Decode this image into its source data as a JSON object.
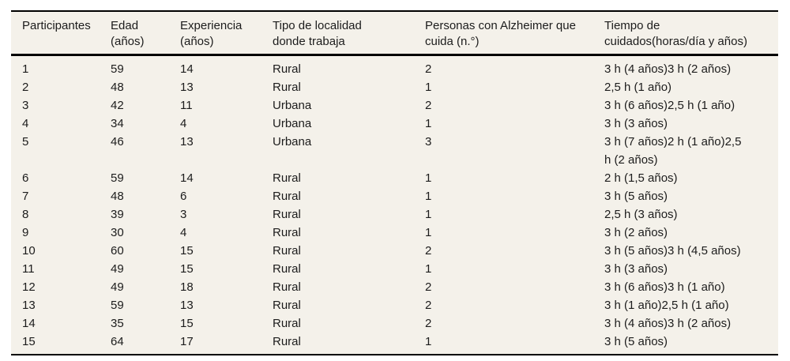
{
  "colors": {
    "table_bg": "#f4f1ea",
    "border": "#000000",
    "text": "#1c1c1c"
  },
  "table": {
    "columns": [
      "Participantes",
      "Edad\n(años)",
      "Experiencia\n(años)",
      "Tipo de localidad\ndonde trabaja",
      "Personas con Alzheimer que\ncuida (n.°)",
      "Tiempo de\ncuidados(horas/día y años)"
    ],
    "rows": [
      [
        "1",
        "59",
        "14",
        "Rural",
        "2",
        "3 h (4 años)3 h (2 años)"
      ],
      [
        "2",
        "48",
        "13",
        "Rural",
        "1",
        "2,5 h (1 año)"
      ],
      [
        "3",
        "42",
        "11",
        "Urbana",
        "2",
        "3 h (6 años)2,5 h (1 año)"
      ],
      [
        "4",
        "34",
        "4",
        "Urbana",
        "1",
        "3 h (3 años)"
      ],
      [
        "5",
        "46",
        "13",
        "Urbana",
        "3",
        "3 h (7 años)2 h (1 año)2,5 h (2 años)"
      ],
      [
        "6",
        "59",
        "14",
        "Rural",
        "1",
        "2 h (1,5 años)"
      ],
      [
        "7",
        "48",
        "6",
        "Rural",
        "1",
        "3 h (5 años)"
      ],
      [
        "8",
        "39",
        "3",
        "Rural",
        "1",
        "2,5 h (3 años)"
      ],
      [
        "9",
        "30",
        "4",
        "Rural",
        "1",
        "3 h (2 años)"
      ],
      [
        "10",
        "60",
        "15",
        "Rural",
        "2",
        "3 h (5 años)3 h (4,5 años)"
      ],
      [
        "11",
        "49",
        "15",
        "Rural",
        "1",
        "3 h (3 años)"
      ],
      [
        "12",
        "49",
        "18",
        "Rural",
        "2",
        "3 h (6 años)3 h (1 año)"
      ],
      [
        "13",
        "59",
        "13",
        "Rural",
        "2",
        "3 h (1 año)2,5 h (1 año)"
      ],
      [
        "14",
        "35",
        "15",
        "Rural",
        "2",
        "3 h (4 años)3 h (2 años)"
      ],
      [
        "15",
        "64",
        "17",
        "Rural",
        "1",
        "3 h (5 años)"
      ]
    ]
  }
}
